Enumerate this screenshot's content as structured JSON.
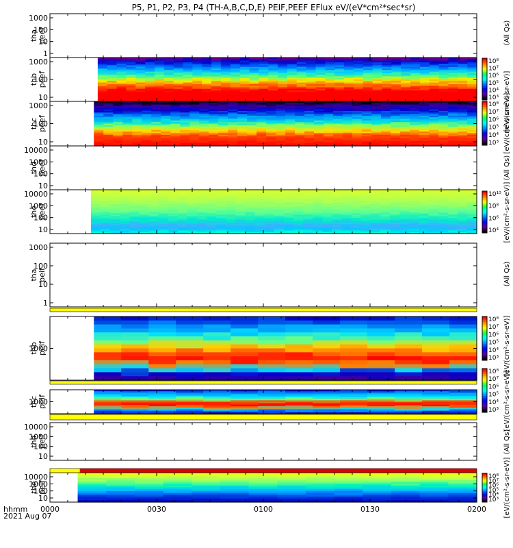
{
  "chart_data": {
    "type": "heatmap",
    "title": "P5, P1, P2, P3, P4 (TH-A,B,C,D,E) PEIF,PEEF EFlux eV/(eV*cm²*sec*sr)",
    "time_axis": {
      "ticks": [
        "0000",
        "0030",
        "0100",
        "0130",
        "0200"
      ],
      "label_line1": "hhmm",
      "label_line2": "2021 Aug 07"
    },
    "panels": [
      {
        "id": "tha_peef",
        "label1": "tha",
        "label2": "peef",
        "empty": true,
        "yticks": [
          "1000",
          "100",
          "10",
          "1"
        ],
        "colorbar": false,
        "side_label": "(All Qs)"
      },
      {
        "id": "thb_peef",
        "label1": "thb",
        "label2": "peef",
        "empty": false,
        "data_start": 0.112,
        "yticks": [
          "1000",
          "100",
          "10"
        ],
        "colorbar": true,
        "cb_ticks": [
          "10⁸",
          "10⁷",
          "10⁶",
          "10⁵",
          "10⁴",
          "10³"
        ],
        "side_label": "[eV/(cm²-s-sr-eV)]",
        "band_profile": [
          [
            0,
            "#6a0090"
          ],
          [
            0.08,
            "#0000c8"
          ],
          [
            0.2,
            "#0066ff"
          ],
          [
            0.3,
            "#00c8ff"
          ],
          [
            0.42,
            "#40ff90"
          ],
          [
            0.52,
            "#f0f000"
          ],
          [
            0.62,
            "#ff8000"
          ],
          [
            0.75,
            "#ff0000"
          ],
          [
            1,
            "#ff0000"
          ]
        ]
      },
      {
        "id": "thc_peef",
        "label1": "thc",
        "label2": "peef",
        "empty": false,
        "data_start": 0.103,
        "yticks": [
          "1000",
          "100",
          "10"
        ],
        "colorbar": true,
        "cb_ticks": [
          "10⁸",
          "10⁷",
          "10⁶",
          "10⁵",
          "10⁴",
          "10³"
        ],
        "side_label": "[eV/(cm²-s-sr-eV)]",
        "band_profile": [
          [
            0,
            "#000000"
          ],
          [
            0.1,
            "#3a00a0"
          ],
          [
            0.2,
            "#0000d0"
          ],
          [
            0.33,
            "#0090ff"
          ],
          [
            0.45,
            "#00e0e0"
          ],
          [
            0.55,
            "#80ff60"
          ],
          [
            0.65,
            "#ffe000"
          ],
          [
            0.78,
            "#ff4000"
          ],
          [
            1,
            "#ff0000"
          ]
        ]
      },
      {
        "id": "thd_peef",
        "label1": "thd",
        "label2": "peef",
        "empty": true,
        "yticks": [
          "10000",
          "1000",
          "100",
          "10"
        ],
        "colorbar": false,
        "side_label": "(All Qs)"
      },
      {
        "id": "the_peef",
        "label1": "the",
        "label2": "peef",
        "empty": false,
        "data_start": 0.096,
        "yticks": [
          "10000",
          "1000",
          "100",
          "10"
        ],
        "colorbar": true,
        "cb_ticks": [
          "10¹⁰",
          "10⁸",
          "10⁶",
          "10⁴"
        ],
        "side_label": "[eV/(cm²-s-sr-eV)]",
        "band_profile": [
          [
            0,
            "#d8ff30"
          ],
          [
            0.25,
            "#b0ff50"
          ],
          [
            0.5,
            "#60ff90"
          ],
          [
            0.7,
            "#00e8d0"
          ],
          [
            0.82,
            "#40b0ff"
          ],
          [
            0.9,
            "#00c8ff"
          ],
          [
            1,
            "#00ffd0"
          ]
        ]
      },
      {
        "id": "tha_peif",
        "label1": "tha",
        "label2": "peif",
        "empty": true,
        "yticks": [
          "1000",
          "100",
          "10",
          "1"
        ],
        "colorbar": false,
        "side_label": "(All Qs)"
      },
      {
        "id": "thb_peif",
        "label1": "thb",
        "label2": "peif",
        "empty": false,
        "data_start": 0.103,
        "yticks": [
          "1000"
        ],
        "colorbar": true,
        "cb_ticks": [
          "10⁸",
          "10⁷",
          "10⁶",
          "10⁵",
          "10⁴",
          "10³"
        ],
        "side_label": "[eV/(cm²-s-sr-eV)]",
        "band_profile": [
          [
            0,
            "#0000c8"
          ],
          [
            0.15,
            "#0090ff"
          ],
          [
            0.28,
            "#00e0ff"
          ],
          [
            0.38,
            "#70ff80"
          ],
          [
            0.48,
            "#ffd000"
          ],
          [
            0.58,
            "#ff6000"
          ],
          [
            0.66,
            "#ff0000"
          ],
          [
            0.74,
            "#ff8000"
          ],
          [
            0.82,
            "#00e0ff"
          ],
          [
            0.9,
            "#0000d0"
          ],
          [
            1,
            "#3a00a0"
          ]
        ]
      },
      {
        "id": "thc_peif",
        "label1": "thc",
        "label2": "peif",
        "empty": false,
        "data_start": 0.103,
        "yticks": [
          "1000"
        ],
        "colorbar": true,
        "cb_ticks": [
          "10⁸",
          "10⁷",
          "10⁶",
          "10⁵",
          "10⁴",
          "10³"
        ],
        "side_label": "[eV/(cm²-s-sr-eV)]",
        "band_profile": [
          [
            0,
            "#0000c8"
          ],
          [
            0.12,
            "#0090ff"
          ],
          [
            0.28,
            "#00e0ff"
          ],
          [
            0.4,
            "#80ff60"
          ],
          [
            0.52,
            "#ff4000"
          ],
          [
            0.62,
            "#ff0000"
          ],
          [
            0.72,
            "#ff8000"
          ],
          [
            0.82,
            "#00e0ff"
          ],
          [
            0.92,
            "#0040ff"
          ],
          [
            1,
            "#0000a0"
          ]
        ]
      },
      {
        "id": "thd_peif",
        "label1": "thd",
        "label2": "peif",
        "empty": true,
        "yticks": [
          "10000",
          "1000",
          "100",
          "10"
        ],
        "colorbar": false,
        "side_label": "(All Qs)"
      },
      {
        "id": "the_peif",
        "label1": "the",
        "label2": "peif",
        "empty": false,
        "data_start": 0.065,
        "yticks": [
          "10000",
          "1000",
          "100",
          "10"
        ],
        "colorbar": true,
        "cb_ticks": [
          "10⁸",
          "10⁷",
          "10⁶",
          "10⁵",
          "10⁴",
          "10³"
        ],
        "side_label": "[eV/(cm²-s-sr-eV)]",
        "band_profile": [
          [
            0,
            "#f0ff00"
          ],
          [
            0.15,
            "#d0ff40"
          ],
          [
            0.3,
            "#80ff70"
          ],
          [
            0.45,
            "#00f0c0"
          ],
          [
            0.58,
            "#00c0ff"
          ],
          [
            0.7,
            "#0080ff"
          ],
          [
            0.8,
            "#0040e0"
          ],
          [
            1,
            "#0000c0"
          ]
        ]
      }
    ],
    "flag_bars": [
      {
        "after_panel": "tha_peif",
        "color": "#ffff00"
      },
      {
        "after_panel": "thb_peif",
        "color": "#ffff00"
      },
      {
        "after_panel": "thc_peif",
        "color": "#ffff00"
      },
      {
        "after_panel": "thd_peif",
        "segments": [
          {
            "to": 0.07,
            "color": "#ffff00"
          },
          {
            "to": 1,
            "color": "#dd0000"
          }
        ]
      }
    ],
    "right_axis_labels": [
      "(All Qs)",
      "[eV/(cm²-s-sr-eV)]",
      "[eV/(cm²-s-sr-eV)]",
      "(All Qs)",
      "[eV/(cm²-s-sr-eV)]",
      "(All Qs)",
      "[eV/(cm²-s-sr-eV)]",
      "[eV/(cm²-s-sr-eV)]",
      "(All Qs)",
      "[eV/(cm²-s-sr-eV)]"
    ]
  }
}
